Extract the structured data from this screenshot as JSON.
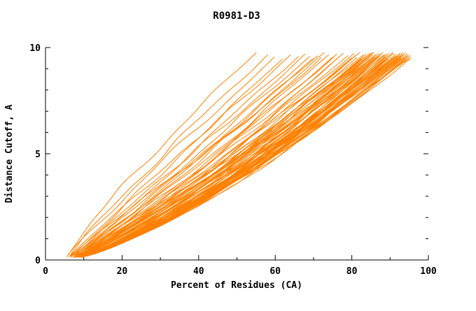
{
  "chart_data": {
    "type": "line",
    "title": "R0981-D3",
    "xlabel": "Percent of Residues (CA)",
    "ylabel": "Distance Cutoff, A",
    "xlim": [
      0,
      100
    ],
    "ylim": [
      0,
      10
    ],
    "x_ticks": [
      0,
      20,
      40,
      60,
      80,
      100
    ],
    "y_ticks": [
      0,
      5,
      10
    ],
    "x_minor_step": 10,
    "y_minor_step": 1,
    "grid": "off",
    "legend": "none",
    "line_color": "#ff8000",
    "axis_color": "#000000",
    "background_color": "#ffffff",
    "n_curves": 80,
    "series_model": {
      "note": "Bundle of ~80 monotonically increasing cumulative curves (percent of CA residues within a distance cutoff). Each curve approximated as x(y) = start + (end-start) * (y/y_top)^p, rising from approx (5,0.2) at bottom-left to y_top near 9.7 at x between 55 and 95. Curve tuples are [x_start, x_end, p_exponent, phase].",
      "y_start": 0.2,
      "y_end": 9.7,
      "curves": [
        [
          5.0,
          55,
          1.15,
          0.3
        ],
        [
          5.5,
          58,
          1.1,
          1.2
        ],
        [
          4.8,
          60,
          1.06,
          2.1
        ],
        [
          6.0,
          62,
          1.03,
          3.0
        ],
        [
          5.2,
          64,
          1.0,
          4.2
        ],
        [
          5.8,
          66,
          0.98,
          0.8
        ],
        [
          5.1,
          68,
          0.96,
          1.9
        ],
        [
          6.2,
          70,
          0.94,
          2.7
        ],
        [
          5.4,
          69,
          0.95,
          3.8
        ],
        [
          5.0,
          71,
          0.93,
          0.5
        ],
        [
          5.6,
          72,
          0.92,
          1.4
        ],
        [
          4.9,
          73,
          0.91,
          2.3
        ],
        [
          6.1,
          74,
          0.9,
          3.2
        ],
        [
          5.3,
          75,
          0.89,
          4.1
        ],
        [
          5.9,
          76,
          0.88,
          0.9
        ],
        [
          5.2,
          77,
          0.88,
          1.8
        ],
        [
          6.0,
          78,
          0.87,
          2.6
        ],
        [
          5.5,
          79,
          0.87,
          3.5
        ],
        [
          4.7,
          80,
          0.86,
          4.4
        ],
        [
          5.8,
          80.5,
          0.86,
          0.6
        ],
        [
          5.1,
          81,
          0.85,
          1.5
        ],
        [
          6.3,
          81.5,
          0.85,
          2.4
        ],
        [
          5.6,
          82,
          0.84,
          3.3
        ],
        [
          5.0,
          82.3,
          0.84,
          4.0
        ],
        [
          5.7,
          82.6,
          0.83,
          0.7
        ],
        [
          4.5,
          83.0,
          0.84,
          0.2
        ],
        [
          5.9,
          83.3,
          0.83,
          1.1
        ],
        [
          5.2,
          83.6,
          0.84,
          2.0
        ],
        [
          6.4,
          83.9,
          0.82,
          2.9
        ],
        [
          4.8,
          84.2,
          0.83,
          3.8
        ],
        [
          5.5,
          84.5,
          0.81,
          4.7
        ],
        [
          6.1,
          84.8,
          0.82,
          5.6
        ],
        [
          4.6,
          85.1,
          0.8,
          0.4
        ],
        [
          5.8,
          85.4,
          0.81,
          1.3
        ],
        [
          5.0,
          85.7,
          0.79,
          2.2
        ],
        [
          6.3,
          86.0,
          0.8,
          3.1
        ],
        [
          4.9,
          86.3,
          0.78,
          4.0
        ],
        [
          5.6,
          86.6,
          0.79,
          4.9
        ],
        [
          6.0,
          86.9,
          0.77,
          5.8
        ],
        [
          4.7,
          87.2,
          0.78,
          0.6
        ],
        [
          5.3,
          87.5,
          0.76,
          1.5
        ],
        [
          6.2,
          87.8,
          0.77,
          2.4
        ],
        [
          4.5,
          88.1,
          0.75,
          3.3
        ],
        [
          5.7,
          88.4,
          0.76,
          4.2
        ],
        [
          5.1,
          88.7,
          0.74,
          5.1
        ],
        [
          6.4,
          89.0,
          0.75,
          6.0
        ],
        [
          4.8,
          89.3,
          0.73,
          0.8
        ],
        [
          5.5,
          89.6,
          0.74,
          1.7
        ],
        [
          5.9,
          89.9,
          0.73,
          2.6
        ],
        [
          4.6,
          90.2,
          0.74,
          3.5
        ],
        [
          5.2,
          90.5,
          0.73,
          4.4
        ],
        [
          6.1,
          90.8,
          0.74,
          5.3
        ],
        [
          4.9,
          91.1,
          0.73,
          0.1
        ],
        [
          5.6,
          91.4,
          0.74,
          1.0
        ],
        [
          6.3,
          91.7,
          0.73,
          1.9
        ],
        [
          4.7,
          92.0,
          0.74,
          2.8
        ],
        [
          5.4,
          92.3,
          0.73,
          3.7
        ],
        [
          6.0,
          92.6,
          0.74,
          4.6
        ],
        [
          4.5,
          92.9,
          0.73,
          5.5
        ],
        [
          5.8,
          93.2,
          0.74,
          0.3
        ],
        [
          5.0,
          93.5,
          0.73,
          1.2
        ],
        [
          6.2,
          93.8,
          0.74,
          2.1
        ],
        [
          4.8,
          94.1,
          0.73,
          3.0
        ],
        [
          5.5,
          94.4,
          0.74,
          3.9
        ],
        [
          5.9,
          94.7,
          0.73,
          4.8
        ],
        [
          4.6,
          95.0,
          0.74,
          5.7
        ],
        [
          5.3,
          95.3,
          0.73,
          0.5
        ],
        [
          6.1,
          95.5,
          0.74,
          1.4
        ],
        [
          4.9,
          85.9,
          0.77,
          2.3
        ],
        [
          5.7,
          86.2,
          0.76,
          3.2
        ],
        [
          6.4,
          87.0,
          0.75,
          4.1
        ],
        [
          4.5,
          88.0,
          0.74,
          5.0
        ],
        [
          5.2,
          89.0,
          0.75,
          5.9
        ],
        [
          5.8,
          90.0,
          0.76,
          0.7
        ],
        [
          4.7,
          91.0,
          0.75,
          1.6
        ],
        [
          5.5,
          92.0,
          0.76,
          2.5
        ],
        [
          6.0,
          93.0,
          0.75,
          3.4
        ],
        [
          4.8,
          94.0,
          0.76,
          4.3
        ],
        [
          5.4,
          95.0,
          0.75,
          5.2
        ],
        [
          6.2,
          88.8,
          0.74,
          6.1
        ]
      ]
    }
  }
}
